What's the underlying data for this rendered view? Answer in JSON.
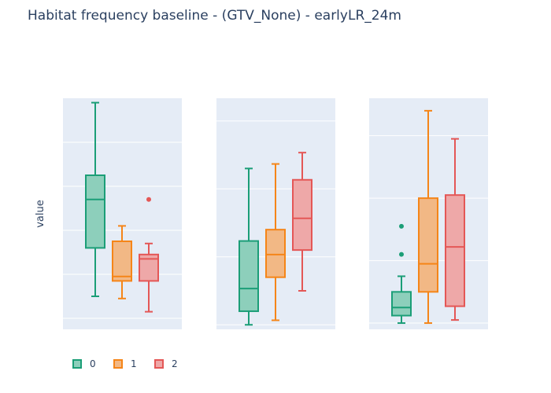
{
  "title": "Habitat frequency baseline - (GTV_None) - earlyLR_24m",
  "colors": {
    "plot_bg": "#E5ECF6",
    "grid": "#ffffff",
    "text": "#2a3f5f"
  },
  "chart_data": [
    {
      "type": "box",
      "panel": 1,
      "ylabel": "value",
      "ylim": [
        -0.05,
        1.0
      ],
      "yticks": [
        0,
        0.2,
        0.4,
        0.6,
        0.8
      ],
      "show_tick_labels": false,
      "series": [
        {
          "name": "0",
          "color": "#1b9e77",
          "fill": "#8dcfbb",
          "lowerfence": 0.1,
          "q1": 0.32,
          "median": 0.54,
          "q3": 0.65,
          "upperfence": 0.98,
          "outliers": []
        },
        {
          "name": "1",
          "color": "#f58518",
          "fill": "#f2b885",
          "lowerfence": 0.09,
          "q1": 0.17,
          "median": 0.19,
          "q3": 0.35,
          "upperfence": 0.42,
          "outliers": []
        },
        {
          "name": "2",
          "color": "#e45756",
          "fill": "#eea8a8",
          "lowerfence": 0.03,
          "q1": 0.17,
          "median": 0.27,
          "q3": 0.29,
          "upperfence": 0.34,
          "outliers": [
            0.54
          ]
        }
      ]
    },
    {
      "type": "box",
      "panel": 2,
      "ylim": [
        -0.02,
        1.0
      ],
      "yticks": [
        0,
        0.3,
        0.6,
        0.9
      ],
      "show_tick_labels": false,
      "series": [
        {
          "name": "0",
          "color": "#1b9e77",
          "fill": "#8dcfbb",
          "lowerfence": 0.0,
          "q1": 0.06,
          "median": 0.16,
          "q3": 0.37,
          "upperfence": 0.69,
          "outliers": []
        },
        {
          "name": "1",
          "color": "#f58518",
          "fill": "#f2b885",
          "lowerfence": 0.02,
          "q1": 0.21,
          "median": 0.31,
          "q3": 0.42,
          "upperfence": 0.71,
          "outliers": []
        },
        {
          "name": "2",
          "color": "#e45756",
          "fill": "#eea8a8",
          "lowerfence": 0.15,
          "q1": 0.33,
          "median": 0.47,
          "q3": 0.64,
          "upperfence": 0.76,
          "outliers": []
        }
      ]
    },
    {
      "type": "box",
      "panel": 3,
      "ylim": [
        -0.01,
        0.36
      ],
      "yticks": [
        0,
        0.1,
        0.2,
        0.3
      ],
      "show_tick_labels": false,
      "series": [
        {
          "name": "0",
          "color": "#1b9e77",
          "fill": "#8dcfbb",
          "lowerfence": 0.0,
          "q1": 0.012,
          "median": 0.025,
          "q3": 0.05,
          "upperfence": 0.075,
          "outliers": [
            0.11,
            0.155
          ]
        },
        {
          "name": "1",
          "color": "#f58518",
          "fill": "#f2b885",
          "lowerfence": 0.0,
          "q1": 0.05,
          "median": 0.095,
          "q3": 0.2,
          "upperfence": 0.34,
          "outliers": []
        },
        {
          "name": "2",
          "color": "#e45756",
          "fill": "#eea8a8",
          "lowerfence": 0.005,
          "q1": 0.027,
          "median": 0.122,
          "q3": 0.205,
          "upperfence": 0.295,
          "outliers": []
        }
      ]
    }
  ],
  "legend": {
    "items": [
      {
        "name": "0",
        "color": "#1b9e77",
        "fill": "#8dcfbb"
      },
      {
        "name": "1",
        "color": "#f58518",
        "fill": "#f2b885"
      },
      {
        "name": "2",
        "color": "#e45756",
        "fill": "#eea8a8"
      }
    ]
  }
}
